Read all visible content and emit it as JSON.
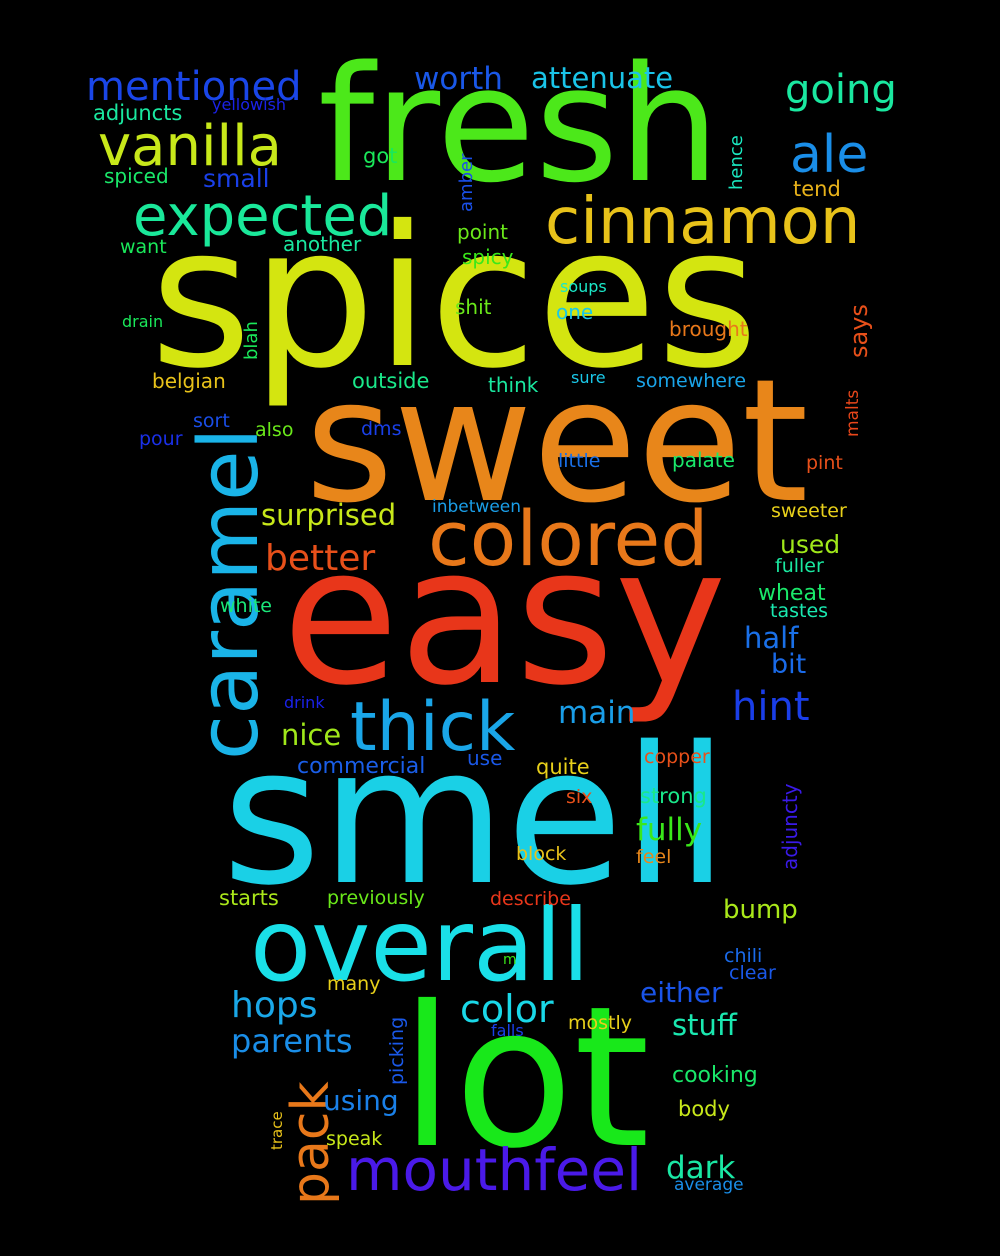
{
  "words": [
    {
      "text": "spices",
      "color": "#d4e510"
    },
    {
      "text": "sweet",
      "color": "#e8861a"
    },
    {
      "text": "easy",
      "color": "#e8361a"
    },
    {
      "text": "smell",
      "color": "#1ad0e6"
    },
    {
      "text": "fresh",
      "color": "#4ce81a"
    },
    {
      "text": "lot",
      "color": "#18e81a"
    },
    {
      "text": "overall",
      "color": "#1ae0e8"
    },
    {
      "text": "caramel",
      "color": "#1ab4e8"
    },
    {
      "text": "colored",
      "color": "#e8781a"
    },
    {
      "text": "cinnamon",
      "color": "#e8c21a"
    },
    {
      "text": "thick",
      "color": "#1aa6e8"
    },
    {
      "text": "mouthfeel",
      "color": "#4a1ae8"
    },
    {
      "text": "expected",
      "color": "#1ae89a"
    },
    {
      "text": "vanilla",
      "color": "#c8e81a"
    },
    {
      "text": "mentioned",
      "color": "#1a46e8"
    },
    {
      "text": "ale",
      "color": "#1a8ee8"
    },
    {
      "text": "pack",
      "color": "#e8781a"
    },
    {
      "text": "going",
      "color": "#1ae8a0"
    },
    {
      "text": "worth",
      "color": "#1a58e8"
    },
    {
      "text": "attenuate",
      "color": "#1ac4e8"
    },
    {
      "text": "hops",
      "color": "#1aa8e8"
    },
    {
      "text": "color",
      "color": "#1ad8e8"
    },
    {
      "text": "parents",
      "color": "#1a8ee8"
    },
    {
      "text": "better",
      "color": "#e8501a"
    },
    {
      "text": "hint",
      "color": "#1a3ee8"
    },
    {
      "text": "surprised",
      "color": "#c8e81a"
    },
    {
      "text": "main",
      "color": "#1a9ee8"
    },
    {
      "text": "nice",
      "color": "#a0e81a"
    },
    {
      "text": "half",
      "color": "#1a70e8"
    },
    {
      "text": "bit",
      "color": "#1a6ae8"
    },
    {
      "text": "fully",
      "color": "#3ae81a"
    },
    {
      "text": "either",
      "color": "#1a54e8"
    },
    {
      "text": "stuff",
      "color": "#1ae8b0"
    },
    {
      "text": "used",
      "color": "#a0e81a"
    },
    {
      "text": "bump",
      "color": "#aae81a"
    },
    {
      "text": "dark",
      "color": "#1ae8a4"
    },
    {
      "text": "using",
      "color": "#1a80e8"
    },
    {
      "text": "adjuncts",
      "color": "#1ae8a0"
    },
    {
      "text": "yellowish",
      "color": "#1a22e8"
    },
    {
      "text": "spiced",
      "color": "#1ae86a"
    },
    {
      "text": "small",
      "color": "#1a40e8"
    },
    {
      "text": "got",
      "color": "#1ae85a"
    },
    {
      "text": "amber",
      "color": "#1a50e8"
    },
    {
      "text": "hence",
      "color": "#1ae8c0"
    },
    {
      "text": "tend",
      "color": "#e8b21a"
    },
    {
      "text": "want",
      "color": "#1ae85a"
    },
    {
      "text": "another",
      "color": "#1ae8a0"
    },
    {
      "text": "point",
      "color": "#6ae81a"
    },
    {
      "text": "spicy",
      "color": "#3ae81a"
    },
    {
      "text": "soups",
      "color": "#1ae8c8"
    },
    {
      "text": "drain",
      "color": "#1ae85a"
    },
    {
      "text": "blah",
      "color": "#1ae85a"
    },
    {
      "text": "shit",
      "color": "#6ae81a"
    },
    {
      "text": "one",
      "color": "#1ac8e8"
    },
    {
      "text": "brought",
      "color": "#e8781a"
    },
    {
      "text": "says",
      "color": "#e8501a"
    },
    {
      "text": "belgian",
      "color": "#e8c21a"
    },
    {
      "text": "outside",
      "color": "#1ae88a"
    },
    {
      "text": "think",
      "color": "#1ae8a0"
    },
    {
      "text": "sure",
      "color": "#1ac8e8"
    },
    {
      "text": "somewhere",
      "color": "#1aa4e8"
    },
    {
      "text": "malts",
      "color": "#e8461a"
    },
    {
      "text": "sort",
      "color": "#1a4ee8"
    },
    {
      "text": "pour",
      "color": "#1a30e8"
    },
    {
      "text": "also",
      "color": "#6ae81a"
    },
    {
      "text": "dms",
      "color": "#1a40e8"
    },
    {
      "text": "little",
      "color": "#1a70e8"
    },
    {
      "text": "palate",
      "color": "#1ae86a"
    },
    {
      "text": "pint",
      "color": "#e8501a"
    },
    {
      "text": "inbetween",
      "color": "#1a9ee8"
    },
    {
      "text": "sweeter",
      "color": "#e8d01a"
    },
    {
      "text": "fuller",
      "color": "#1ae8a0"
    },
    {
      "text": "wheat",
      "color": "#1ae86a"
    },
    {
      "text": "tastes",
      "color": "#1ae8b0"
    },
    {
      "text": "white",
      "color": "#1ae87a"
    },
    {
      "text": "drink",
      "color": "#1a22e8"
    },
    {
      "text": "commercial",
      "color": "#1a5ee8"
    },
    {
      "text": "use",
      "color": "#1a58e8"
    },
    {
      "text": "quite",
      "color": "#e8d01a"
    },
    {
      "text": "copper",
      "color": "#e8501a"
    },
    {
      "text": "adjuncty",
      "color": "#3a1ae8"
    },
    {
      "text": "six",
      "color": "#e8501a"
    },
    {
      "text": "strong",
      "color": "#1ae88a"
    },
    {
      "text": "block",
      "color": "#e8c21a"
    },
    {
      "text": "feel",
      "color": "#e8861a"
    },
    {
      "text": "starts",
      "color": "#aae81a"
    },
    {
      "text": "previously",
      "color": "#6ae81a"
    },
    {
      "text": "describe",
      "color": "#e8361a"
    },
    {
      "text": "chili",
      "color": "#1a6ae8"
    },
    {
      "text": "clear",
      "color": "#1a58e8"
    },
    {
      "text": "m",
      "color": "#3ae81a"
    },
    {
      "text": "many",
      "color": "#e8d01a"
    },
    {
      "text": "picking",
      "color": "#1a58e8"
    },
    {
      "text": "falls",
      "color": "#1a40e8"
    },
    {
      "text": "mostly",
      "color": "#e8d01a"
    },
    {
      "text": "cooking",
      "color": "#1ae86a"
    },
    {
      "text": "body",
      "color": "#c8e81a"
    },
    {
      "text": "trace",
      "color": "#e8c21a"
    },
    {
      "text": "speak",
      "color": "#c8e81a"
    },
    {
      "text": "average",
      "color": "#1a8ee8"
    }
  ]
}
